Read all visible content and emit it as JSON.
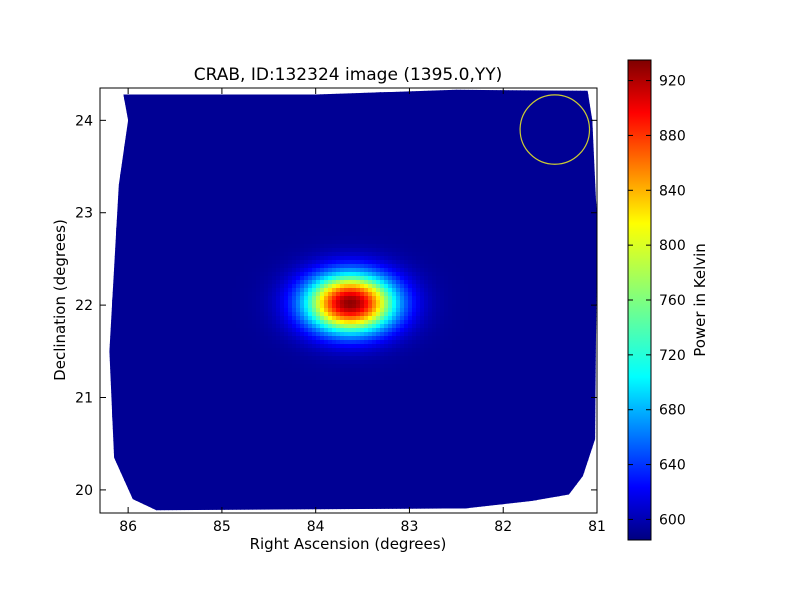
{
  "chart_data": {
    "type": "heatmap",
    "title": "CRAB, ID:132324 image (1395.0,YY)",
    "xlabel": "Right Ascension (degrees)",
    "ylabel": "Declination (degrees)",
    "xlim": [
      86.3,
      81.0
    ],
    "ylim": [
      19.75,
      24.35
    ],
    "x_ticks": [
      86,
      85,
      84,
      83,
      82,
      81
    ],
    "y_ticks": [
      20,
      21,
      22,
      23,
      24
    ],
    "grid": false,
    "colorbar": {
      "label": "Power in Kelvin",
      "range": [
        585,
        935
      ],
      "ticks": [
        600,
        640,
        680,
        720,
        760,
        800,
        840,
        880,
        920
      ],
      "colormap": "jet"
    },
    "background_level": 592,
    "sources": [
      {
        "ra": 83.63,
        "dec": 22.02,
        "peak": 930,
        "sigma_ra": 0.33,
        "sigma_dec": 0.22
      }
    ],
    "beam_marker": {
      "ra": 81.45,
      "dec": 23.9,
      "radius_deg": 0.37,
      "color": "#cccc33"
    },
    "map_boundary": [
      [
        86.05,
        24.28
      ],
      [
        84.0,
        24.28
      ],
      [
        82.5,
        24.33
      ],
      [
        81.1,
        24.32
      ],
      [
        81.05,
        24.0
      ],
      [
        81.0,
        22.9
      ],
      [
        81.02,
        20.55
      ],
      [
        81.15,
        20.15
      ],
      [
        81.3,
        19.95
      ],
      [
        81.7,
        19.88
      ],
      [
        82.4,
        19.8
      ],
      [
        85.7,
        19.78
      ],
      [
        85.95,
        19.9
      ],
      [
        86.15,
        20.35
      ],
      [
        86.2,
        21.5
      ],
      [
        86.15,
        22.4
      ],
      [
        86.1,
        23.3
      ],
      [
        86.0,
        24.0
      ]
    ]
  }
}
